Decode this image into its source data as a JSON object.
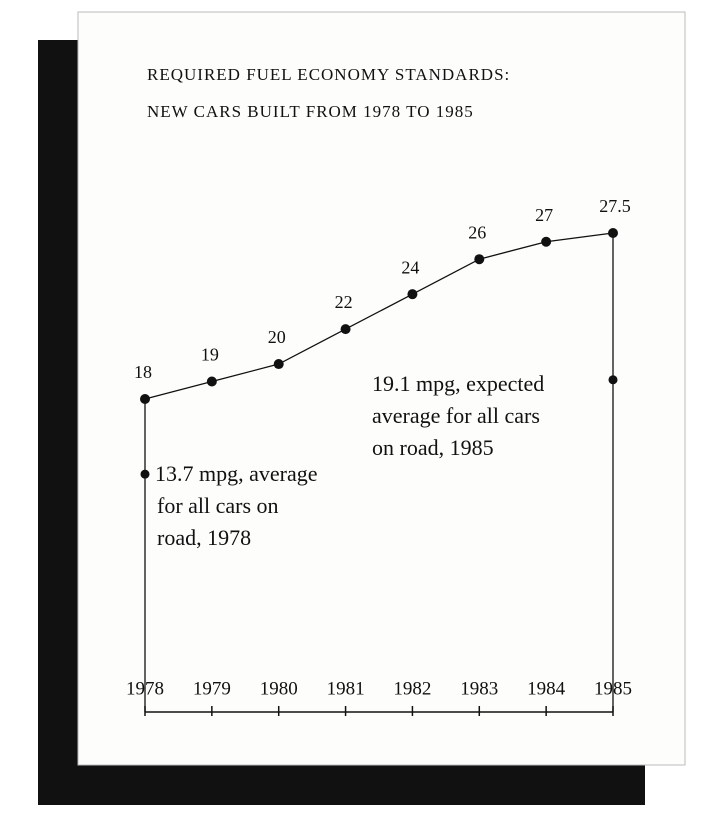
{
  "chart_data": {
    "type": "line",
    "title": "REQUIRED FUEL ECONOMY STANDARDS:",
    "subtitle": "NEW CARS BUILT FROM 1978 TO 1985",
    "categories": [
      "1978",
      "1979",
      "1980",
      "1981",
      "1982",
      "1983",
      "1984",
      "1985"
    ],
    "values": [
      18,
      19,
      20,
      22,
      24,
      26,
      27,
      27.5
    ],
    "color": "#111111",
    "annotations": [
      {
        "x": "1978",
        "value": 13.7,
        "lines": [
          "13.7 mpg, average",
          "for all cars on",
          "road, 1978"
        ]
      },
      {
        "x": "1985",
        "value": 19.1,
        "lines": [
          "19.1 mpg, expected",
          "average for all cars",
          "on road, 1985"
        ]
      }
    ]
  }
}
